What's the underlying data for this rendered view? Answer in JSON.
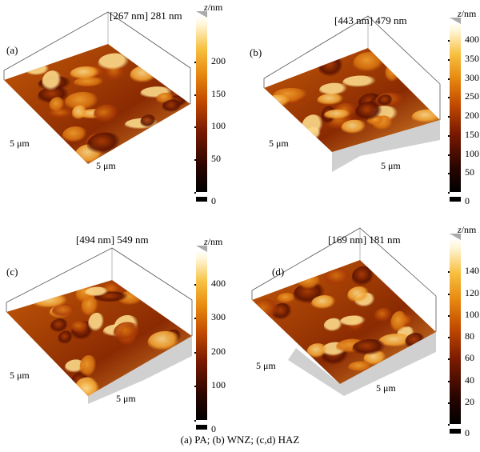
{
  "panels": [
    {
      "id": "a",
      "label": "(a)",
      "title": "[267 nm] 281 nm",
      "axis_x": "5 μm",
      "axis_y": "5 μm",
      "unit": "z/nm",
      "ticks": [
        0,
        50,
        100,
        150,
        200
      ],
      "zmax": 267
    },
    {
      "id": "b",
      "label": "(b)",
      "title": "[443 nm] 479 nm",
      "axis_x": "5 μm",
      "axis_y": "5 μm",
      "unit": "z/nm",
      "ticks": [
        0,
        50,
        100,
        150,
        200,
        250,
        300,
        350,
        400
      ],
      "zmax": 443
    },
    {
      "id": "c",
      "label": "(c)",
      "title": "[494 nm] 549 nm",
      "axis_x": "5 μm",
      "axis_y": "5 μm",
      "unit": "z/nm",
      "ticks": [
        0,
        100,
        200,
        300,
        400
      ],
      "zmax": 494
    },
    {
      "id": "d",
      "label": "(d)",
      "title": "[169 nm] 181 nm",
      "axis_x": "5 μm",
      "axis_y": "5 μm",
      "unit": "z/nm",
      "ticks": [
        0,
        20,
        40,
        60,
        80,
        100,
        120,
        140
      ],
      "zmax": 169
    }
  ],
  "caption": "(a) PA; (b) WNZ; (c,d) HAZ"
}
